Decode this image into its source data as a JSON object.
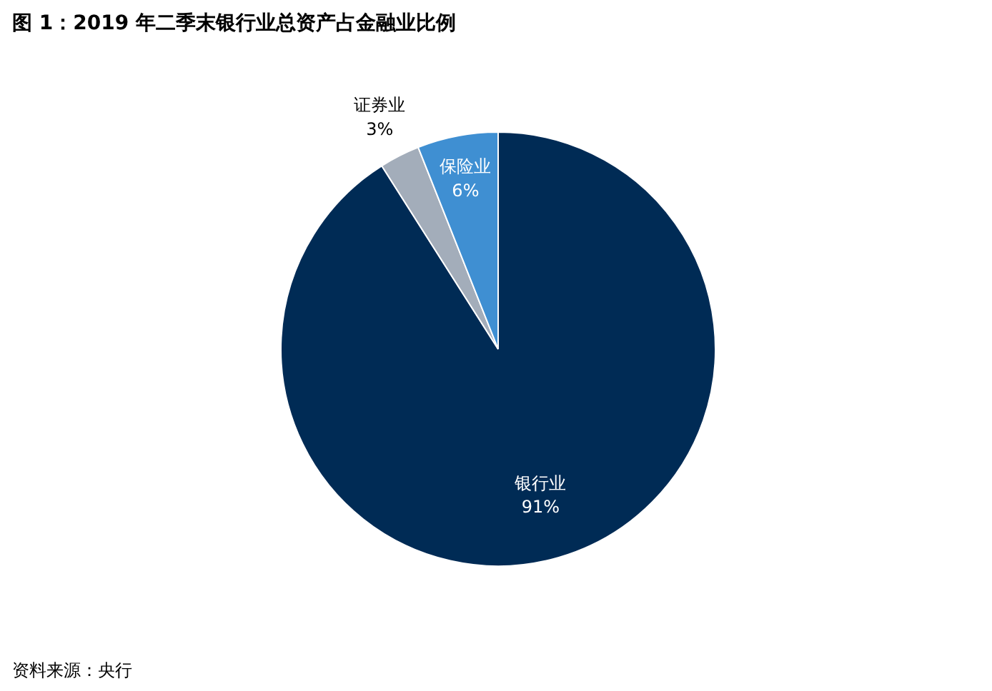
{
  "chart_data": {
    "type": "pie",
    "title": "图 1：2019 年二季末银行业总资产占金融业比例",
    "categories": [
      "银行业",
      "证券业",
      "保险业"
    ],
    "values": [
      91,
      3,
      6
    ],
    "colors": [
      "#002b55",
      "#a3adba",
      "#3f8fd2"
    ],
    "value_labels": [
      "91%",
      "3%",
      "6%"
    ],
    "annotations": [
      "资料来源：央行"
    ]
  }
}
